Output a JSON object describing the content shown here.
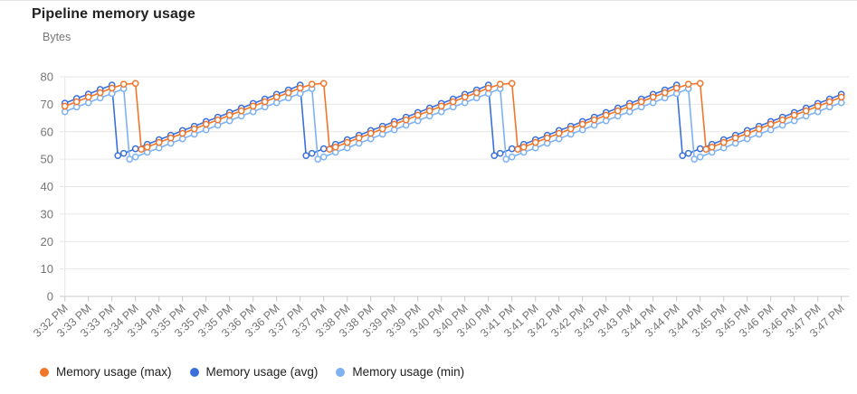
{
  "header": {
    "title": "Pipeline memory usage",
    "unit_label": "Bytes"
  },
  "legend": {
    "items": [
      {
        "key": "max",
        "label": "Memory usage (max)",
        "color": "#f0762b"
      },
      {
        "key": "avg",
        "label": "Memory usage (avg)",
        "color": "#3b70dc"
      },
      {
        "key": "min",
        "label": "Memory usage (min)",
        "color": "#7fb1f0"
      }
    ]
  },
  "chart_data": {
    "type": "line",
    "title": "Pipeline memory usage",
    "xlabel": "",
    "ylabel": "Bytes",
    "ylim": [
      0,
      80
    ],
    "y_ticks": [
      0,
      10,
      20,
      30,
      40,
      50,
      60,
      70,
      80
    ],
    "grid": "horizontal",
    "legend_position": "bottom",
    "marker": "open-circle",
    "x_unit": "slot index; one labeled tick every 2 slots",
    "x_tick_labels": [
      "3:32 PM",
      "3:33 PM",
      "3:33 PM",
      "3:34 PM",
      "3:34 PM",
      "3:35 PM",
      "3:35 PM",
      "3:35 PM",
      "3:36 PM",
      "3:36 PM",
      "3:37 PM",
      "3:37 PM",
      "3:38 PM",
      "3:38 PM",
      "3:39 PM",
      "3:39 PM",
      "3:40 PM",
      "3:40 PM",
      "3:40 PM",
      "3:41 PM",
      "3:41 PM",
      "3:42 PM",
      "3:42 PM",
      "3:43 PM",
      "3:43 PM",
      "3:44 PM",
      "3:44 PM",
      "3:44 PM",
      "3:45 PM",
      "3:45 PM",
      "3:46 PM",
      "3:46 PM",
      "3:47 PM",
      "3:47 PM"
    ],
    "series": [
      {
        "key": "avg",
        "name": "Memory usage (avg)",
        "color": "#3b70dc",
        "points": [
          [
            0,
            70.4
          ],
          [
            1,
            72.1
          ],
          [
            2,
            73.7
          ],
          [
            3,
            75.4
          ],
          [
            4,
            77
          ],
          [
            4.5,
            51.3
          ],
          [
            5,
            52.1
          ],
          [
            6,
            53.8
          ],
          [
            7,
            55.4
          ],
          [
            8,
            57.1
          ],
          [
            9,
            58.7
          ],
          [
            10,
            60.4
          ],
          [
            11,
            62
          ],
          [
            12,
            63.7
          ],
          [
            13,
            65.3
          ],
          [
            14,
            67
          ],
          [
            15,
            68.6
          ],
          [
            16,
            70.3
          ],
          [
            17,
            71.9
          ],
          [
            18,
            73.6
          ],
          [
            19,
            75.2
          ],
          [
            20,
            77
          ],
          [
            20.5,
            51.3
          ],
          [
            21,
            52.1
          ],
          [
            22,
            53.8
          ],
          [
            23,
            55.4
          ],
          [
            24,
            57.1
          ],
          [
            25,
            58.7
          ],
          [
            26,
            60.4
          ],
          [
            27,
            62
          ],
          [
            28,
            63.7
          ],
          [
            29,
            65.3
          ],
          [
            30,
            67
          ],
          [
            31,
            68.6
          ],
          [
            32,
            70.3
          ],
          [
            33,
            71.9
          ],
          [
            34,
            73.6
          ],
          [
            35,
            75.2
          ],
          [
            36,
            77
          ],
          [
            36.5,
            51.3
          ],
          [
            37,
            52.1
          ],
          [
            38,
            53.8
          ],
          [
            39,
            55.4
          ],
          [
            40,
            57.1
          ],
          [
            41,
            58.7
          ],
          [
            42,
            60.4
          ],
          [
            43,
            62
          ],
          [
            44,
            63.7
          ],
          [
            45,
            65.3
          ],
          [
            46,
            67
          ],
          [
            47,
            68.6
          ],
          [
            48,
            70.3
          ],
          [
            49,
            71.9
          ],
          [
            50,
            73.6
          ],
          [
            51,
            75.2
          ],
          [
            52,
            77
          ],
          [
            52.5,
            51.3
          ],
          [
            53,
            52.1
          ],
          [
            54,
            53.8
          ],
          [
            55,
            55.4
          ],
          [
            56,
            57.1
          ],
          [
            57,
            58.7
          ],
          [
            58,
            60.4
          ],
          [
            59,
            62
          ],
          [
            60,
            63.7
          ],
          [
            61,
            65.3
          ],
          [
            62,
            67
          ],
          [
            63,
            68.6
          ],
          [
            64,
            70.3
          ],
          [
            65,
            71.9
          ],
          [
            66,
            73.6
          ]
        ]
      },
      {
        "key": "min",
        "name": "Memory usage (min)",
        "color": "#7fb1f0",
        "points": [
          [
            0,
            67.3
          ],
          [
            1,
            69
          ],
          [
            2,
            70.6
          ],
          [
            3,
            72.3
          ],
          [
            4,
            73.9
          ],
          [
            5,
            75.7
          ],
          [
            5.5,
            50
          ],
          [
            6,
            50.8
          ],
          [
            7,
            52.5
          ],
          [
            8,
            54.1
          ],
          [
            9,
            55.8
          ],
          [
            10,
            57.4
          ],
          [
            11,
            59.1
          ],
          [
            12,
            60.7
          ],
          [
            13,
            62.4
          ],
          [
            14,
            64
          ],
          [
            15,
            65.7
          ],
          [
            16,
            67.3
          ],
          [
            17,
            69
          ],
          [
            18,
            70.6
          ],
          [
            19,
            72.3
          ],
          [
            20,
            73.9
          ],
          [
            21,
            75.7
          ],
          [
            21.5,
            50
          ],
          [
            22,
            50.8
          ],
          [
            23,
            52.5
          ],
          [
            24,
            54.1
          ],
          [
            25,
            55.8
          ],
          [
            26,
            57.4
          ],
          [
            27,
            59.1
          ],
          [
            28,
            60.7
          ],
          [
            29,
            62.4
          ],
          [
            30,
            64
          ],
          [
            31,
            65.7
          ],
          [
            32,
            67.3
          ],
          [
            33,
            69
          ],
          [
            34,
            70.6
          ],
          [
            35,
            72.3
          ],
          [
            36,
            73.9
          ],
          [
            37,
            75.7
          ],
          [
            37.5,
            50
          ],
          [
            38,
            50.8
          ],
          [
            39,
            52.5
          ],
          [
            40,
            54.1
          ],
          [
            41,
            55.8
          ],
          [
            42,
            57.4
          ],
          [
            43,
            59.1
          ],
          [
            44,
            60.7
          ],
          [
            45,
            62.4
          ],
          [
            46,
            64
          ],
          [
            47,
            65.7
          ],
          [
            48,
            67.3
          ],
          [
            49,
            69
          ],
          [
            50,
            70.6
          ],
          [
            51,
            72.3
          ],
          [
            52,
            73.9
          ],
          [
            53,
            75.7
          ],
          [
            53.5,
            50
          ],
          [
            54,
            50.8
          ],
          [
            55,
            52.5
          ],
          [
            56,
            54.1
          ],
          [
            57,
            55.8
          ],
          [
            58,
            57.4
          ],
          [
            59,
            59.1
          ],
          [
            60,
            60.7
          ],
          [
            61,
            62.4
          ],
          [
            62,
            64
          ],
          [
            63,
            65.7
          ],
          [
            64,
            67.3
          ],
          [
            65,
            69
          ],
          [
            66,
            70.6
          ]
        ]
      },
      {
        "key": "max",
        "name": "Memory usage (max)",
        "color": "#f0762b",
        "points": [
          [
            0,
            69.3
          ],
          [
            1,
            70.9
          ],
          [
            2,
            72.6
          ],
          [
            3,
            74.2
          ],
          [
            4,
            75.9
          ],
          [
            5,
            77.3
          ],
          [
            6,
            77.6
          ],
          [
            6.5,
            53.6
          ],
          [
            7,
            54.4
          ],
          [
            8,
            56.1
          ],
          [
            9,
            57.7
          ],
          [
            10,
            59.4
          ],
          [
            11,
            61
          ],
          [
            12,
            62.7
          ],
          [
            13,
            64.3
          ],
          [
            14,
            66
          ],
          [
            15,
            67.6
          ],
          [
            16,
            69.3
          ],
          [
            17,
            70.9
          ],
          [
            18,
            72.6
          ],
          [
            19,
            74.2
          ],
          [
            20,
            75.9
          ],
          [
            21,
            77.3
          ],
          [
            22,
            77.6
          ],
          [
            22.5,
            53.6
          ],
          [
            23,
            54.4
          ],
          [
            24,
            56.1
          ],
          [
            25,
            57.7
          ],
          [
            26,
            59.4
          ],
          [
            27,
            61
          ],
          [
            28,
            62.7
          ],
          [
            29,
            64.3
          ],
          [
            30,
            66
          ],
          [
            31,
            67.6
          ],
          [
            32,
            69.3
          ],
          [
            33,
            70.9
          ],
          [
            34,
            72.6
          ],
          [
            35,
            74.2
          ],
          [
            36,
            75.9
          ],
          [
            37,
            77.3
          ],
          [
            38,
            77.6
          ],
          [
            38.5,
            53.6
          ],
          [
            39,
            54.4
          ],
          [
            40,
            56.1
          ],
          [
            41,
            57.7
          ],
          [
            42,
            59.4
          ],
          [
            43,
            61
          ],
          [
            44,
            62.7
          ],
          [
            45,
            64.3
          ],
          [
            46,
            66
          ],
          [
            47,
            67.6
          ],
          [
            48,
            69.3
          ],
          [
            49,
            70.9
          ],
          [
            50,
            72.6
          ],
          [
            51,
            74.2
          ],
          [
            52,
            75.9
          ],
          [
            53,
            77.3
          ],
          [
            54,
            77.6
          ],
          [
            54.5,
            53.6
          ],
          [
            55,
            54.4
          ],
          [
            56,
            56.1
          ],
          [
            57,
            57.7
          ],
          [
            58,
            59.4
          ],
          [
            59,
            61
          ],
          [
            60,
            62.7
          ],
          [
            61,
            64.3
          ],
          [
            62,
            66
          ],
          [
            63,
            67.6
          ],
          [
            64,
            69.3
          ],
          [
            65,
            70.9
          ],
          [
            66,
            72.6
          ]
        ]
      }
    ]
  }
}
